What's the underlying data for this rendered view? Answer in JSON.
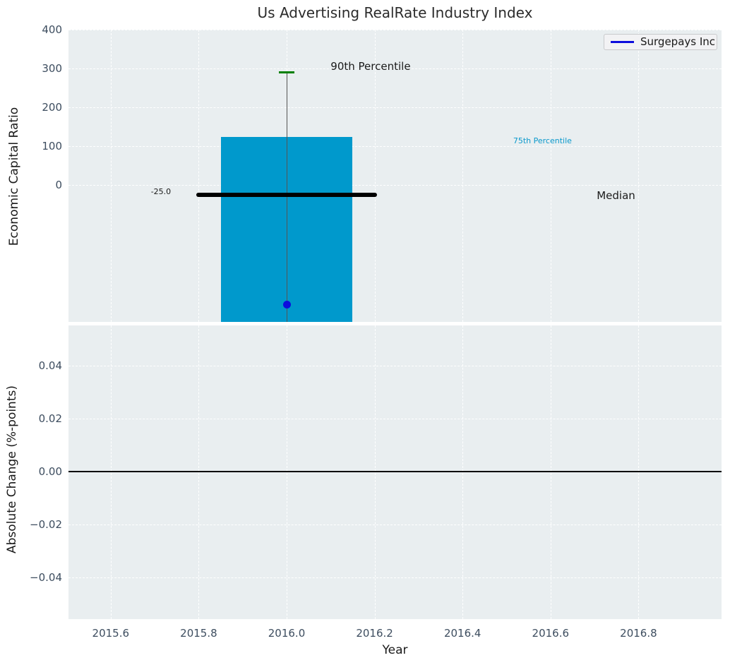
{
  "title": "Us Advertising RealRate Industry Index",
  "legend": {
    "label": "Surgepays Inc"
  },
  "colors": {
    "panel_bg": "#e9eef0",
    "grid": "#ffffff",
    "bar": "#0099cc",
    "median_line": "#000000",
    "whisker": "#555555",
    "p90_cap": "#008000",
    "company_dot": "#0d0ddd",
    "legend_line": "#0d0ddd",
    "tick_label": "#3d4d5f",
    "text": "#1a1a1a",
    "zero_line": "#000000"
  },
  "chart_data": [
    {
      "type": "bar",
      "panel": "top",
      "title": "Us Advertising RealRate Industry Index",
      "ylabel": "Economic Capital Ratio",
      "yticks": [
        400,
        300,
        200,
        100,
        0
      ],
      "ytick_labels": [
        "400",
        "300",
        "200",
        "100",
        "0"
      ],
      "ylim": [
        -353,
        400
      ],
      "xlim": [
        2015.5,
        2017.0
      ],
      "grid": true,
      "legend_position": "upper right",
      "legend_entries": [
        "Surgepays Inc"
      ],
      "series": [
        {
          "name": "Surgepays Inc",
          "mark": "point",
          "x": 2016.0,
          "y": -308
        }
      ],
      "industry_distribution": {
        "x": 2016.0,
        "p90": 290,
        "p75": 124,
        "median": -25.0,
        "median_label": "-25.0",
        "bar_top": 124,
        "bar_bottom_clipped": true,
        "bar_halfwidth_years": 0.15,
        "median_halfwidth_years": 0.205,
        "cap_halfwidth_years": 0.017
      },
      "annotations": [
        {
          "text": "90th Percentile",
          "x": 2016.1,
          "y": 305,
          "align": "left",
          "size": 15,
          "color": "#1a1a1a"
        },
        {
          "text": "75th Percentile",
          "x": 2016.515,
          "y": 112,
          "align": "left",
          "size": 11,
          "color": "#0b99cc"
        },
        {
          "text": "Median",
          "x": 2016.705,
          "y": -28,
          "align": "left",
          "size": 15,
          "color": "#1a1a1a"
        },
        {
          "text": "-25.0",
          "x": 2015.737,
          "y": -19,
          "align": "right",
          "size": 11,
          "color": "#1a1a1a"
        }
      ]
    },
    {
      "type": "line",
      "panel": "bottom",
      "ylabel": "Absolute Change (%-points)",
      "xlabel": "Year",
      "yticks": [
        0.04,
        0.02,
        0,
        -0.02,
        -0.04
      ],
      "ytick_labels": [
        "0.04",
        "0.02",
        "0.00",
        "−0.02",
        "−0.04"
      ],
      "xticks": [
        2015.6,
        2015.8,
        2016.0,
        2016.2,
        2016.4,
        2016.6,
        2016.8
      ],
      "xtick_labels": [
        "2015.6",
        "2015.8",
        "2016.0",
        "2016.2",
        "2016.4",
        "2016.6",
        "2016.8"
      ],
      "ylim": [
        -0.0557,
        0.0552
      ],
      "xlim": [
        2015.5,
        2017.0
      ],
      "grid": true,
      "zero_line": 0.0,
      "series": []
    }
  ]
}
